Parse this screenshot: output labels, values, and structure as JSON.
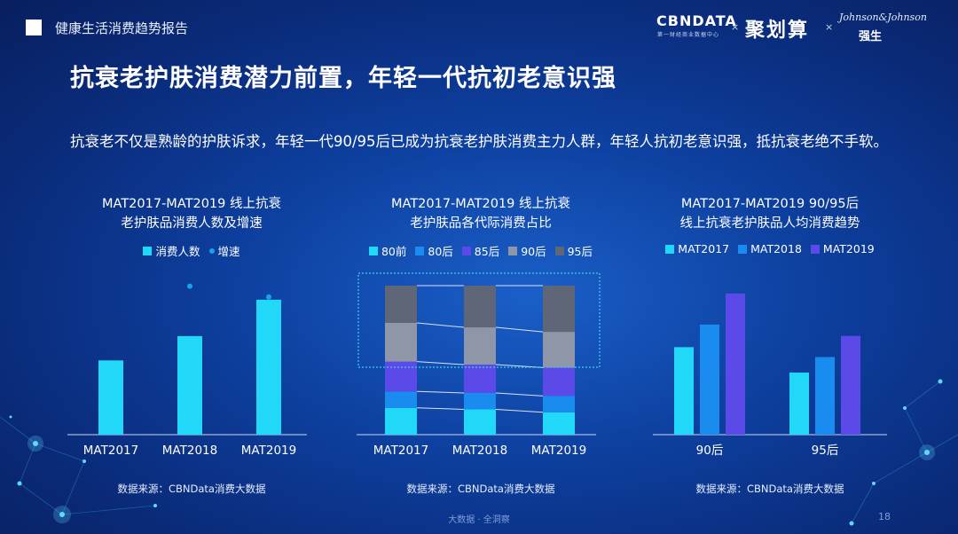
{
  "header": {
    "report_name": "健康生活消费趋势报告",
    "brand_cbn": "CBNDATA",
    "brand_cbn_sub": "第一财经商业数据中心",
    "brand_jhs": "聚划算",
    "brand_jj": "Johnson&Johnson",
    "brand_qs": "强生",
    "separator": "×"
  },
  "headline": "抗衰老护肤消费潜力前置，年轻一代抗初老意识强",
  "intro": "抗衰老不仅是熟龄的护肤诉求，年轻一代90/95后已成为抗衰老护肤消费主力人群，年轻人抗初老意识强，抵抗衰老绝不手软。",
  "colors": {
    "cyan": "#22d8f8",
    "blue": "#1a8cf0",
    "purple": "#5b4ae8",
    "gray": "#8e96a8",
    "dark_gray": "#5f6678",
    "dot": "#1aa0f0"
  },
  "chart_data": [
    {
      "type": "bar",
      "title_line1": "MAT2017-MAT2019 线上抗衰",
      "title_line2": "老护肤品消费人数及增速",
      "legend": [
        "消费人数",
        "增速"
      ],
      "categories": [
        "MAT2017",
        "MAT2018",
        "MAT2019"
      ],
      "series": [
        {
          "name": "消费人数",
          "values": [
            55,
            73,
            100
          ]
        },
        {
          "name": "增速",
          "values": [
            null,
            110,
            102
          ]
        }
      ],
      "ylim": [
        0,
        115
      ],
      "source": "数据来源：CBNData消费大数据"
    },
    {
      "type": "bar",
      "stacked": true,
      "title_line1": "MAT2017-MAT2019 线上抗衰",
      "title_line2": "老护肤品各代际消费占比",
      "legend": [
        "80前",
        "80后",
        "85后",
        "90后",
        "95后"
      ],
      "categories": [
        "MAT2017",
        "MAT2018",
        "MAT2019"
      ],
      "series": [
        {
          "name": "80前",
          "values": [
            18,
            17,
            15
          ]
        },
        {
          "name": "80后",
          "values": [
            11,
            11,
            11
          ]
        },
        {
          "name": "85后",
          "values": [
            20,
            19,
            19
          ]
        },
        {
          "name": "90后",
          "values": [
            26,
            25,
            24
          ]
        },
        {
          "name": "95后",
          "values": [
            25,
            28,
            31
          ]
        }
      ],
      "ylim": [
        0,
        100
      ],
      "source": "数据来源：CBNData消费大数据"
    },
    {
      "type": "bar",
      "title_line1": "MAT2017-MAT2019 90/95后",
      "title_line2": "线上抗衰老护肤品人均消费趋势",
      "legend": [
        "MAT2017",
        "MAT2018",
        "MAT2019"
      ],
      "categories": [
        "90后",
        "95后"
      ],
      "series": [
        {
          "name": "MAT2017",
          "values": [
            62,
            44
          ]
        },
        {
          "name": "MAT2018",
          "values": [
            78,
            55
          ]
        },
        {
          "name": "MAT2019",
          "values": [
            100,
            70
          ]
        }
      ],
      "ylim": [
        0,
        110
      ],
      "source": "数据来源：CBNData消费大数据"
    }
  ],
  "footer": "大数据 · 全洞察",
  "page_number": "18"
}
